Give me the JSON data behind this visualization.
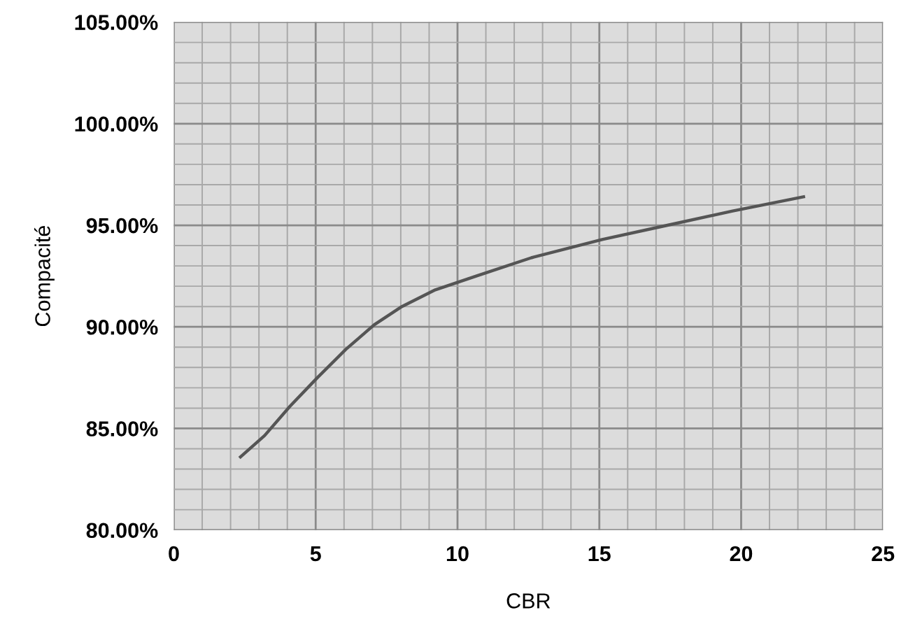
{
  "chart_data": {
    "type": "line",
    "xlabel": "CBR",
    "ylabel": "Compacité",
    "x": [
      2.35,
      3.2,
      4.1,
      5.06,
      6.07,
      7.06,
      8.04,
      9.18,
      10.66,
      12.6,
      15.1,
      17.4,
      19.7,
      22.2
    ],
    "series": [
      {
        "color": "#555555",
        "values": [
          83.6,
          84.65,
          86.1,
          87.5,
          88.9,
          90.1,
          91.0,
          91.8,
          92.5,
          93.4,
          94.3,
          95.0,
          95.7,
          96.4
        ]
      }
    ],
    "xlim": [
      0,
      25
    ],
    "xticks": [
      0,
      5,
      10,
      15,
      20,
      25
    ],
    "ylim": [
      80,
      105
    ],
    "yticks": [
      {
        "value": 80,
        "label": "80.00%"
      },
      {
        "value": 85,
        "label": "85.00%"
      },
      {
        "value": 90,
        "label": "90.00%"
      },
      {
        "value": 95,
        "label": "95.00%"
      },
      {
        "value": 100,
        "label": "100.00%"
      },
      {
        "value": 105,
        "label": "105.00%"
      }
    ],
    "grid": true,
    "marker": "none",
    "line_style": "solid"
  }
}
